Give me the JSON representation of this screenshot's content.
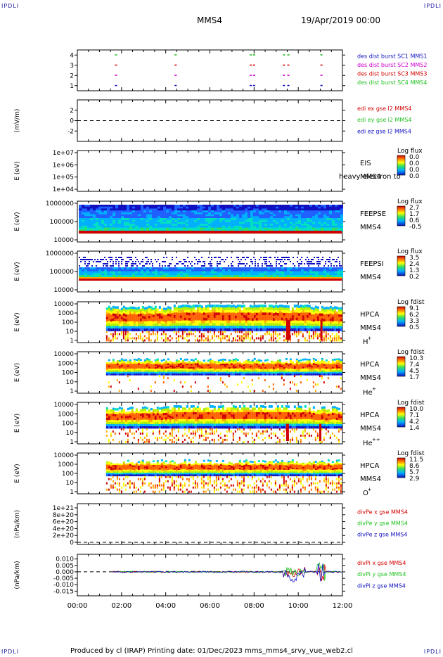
{
  "corner_marks": [
    "IPDLI",
    "IPDLI",
    "IPDLI",
    "IPDLI"
  ],
  "header": {
    "spacecraft": "MMS4",
    "date": "19/Apr/2019 00:00"
  },
  "footer": {
    "text": "Produced by cl (IRAP)   Printing date: 01/Dec/2023   mms_mms4_srvy_vue_web2.cl"
  },
  "colors": {
    "red": "#d40000",
    "green": "#22c022",
    "blue": "#1010c0",
    "magenta": "#d000d0"
  },
  "chart_data": [
    {
      "type": "scatter",
      "ylim": [
        0.5,
        4.5
      ],
      "yticks": [
        "4",
        "3",
        "2",
        "1"
      ],
      "legend": [
        {
          "label": "des dist burst SC1 MMS1",
          "color": "#1010c0"
        },
        {
          "label": "des dist burst SC2 MMS2",
          "color": "#d000d0"
        },
        {
          "label": "des dist burst SC3 MMS3",
          "color": "#d40000"
        },
        {
          "label": "des dist burst SC4 MMS4",
          "color": "#22c022"
        }
      ],
      "burst_times_h": [
        1.75,
        4.45,
        7.85,
        8.0,
        9.35,
        9.55,
        11.05
      ]
    },
    {
      "type": "line",
      "ylabel": "(mV/m)",
      "yticks": [
        "2",
        "0",
        "-2"
      ],
      "legend": [
        {
          "label": "edi ex gse l2 MMS4",
          "color": "#d40000"
        },
        {
          "label": "edi ey gse l2 MMS4",
          "color": "#22c022"
        },
        {
          "label": "edi ez gse l2 MMS4",
          "color": "#1010c0"
        }
      ]
    },
    {
      "type": "heatmap",
      "ylabel": "E (eV)",
      "yticks": [
        "1e+07",
        "1e+06",
        "1e+05",
        "1e+04"
      ],
      "instrument": [
        "EIS",
        "MMS4"
      ],
      "overlay_text": "heavy electron to",
      "colorbar": {
        "title": "Log flux",
        "ticks": [
          "0.0",
          "0.0",
          "0.0",
          "0.0"
        ]
      }
    },
    {
      "type": "heatmap",
      "ylabel": "E (eV)",
      "yticks": [
        "1000000",
        "100000",
        "10000"
      ],
      "instrument": [
        "FEEPSE",
        "MMS4"
      ],
      "colorbar": {
        "title": "Log flux",
        "ticks": [
          "2.7",
          "1.7",
          "0.6",
          "-0.5"
        ]
      }
    },
    {
      "type": "heatmap",
      "ylabel": "E (eV)",
      "yticks": [
        "1000000",
        "100000",
        "10000"
      ],
      "instrument": [
        "FEEPSI",
        "MMS4"
      ],
      "colorbar": {
        "title": "Log flux",
        "ticks": [
          "3.5",
          "2.4",
          "1.3",
          "0.2"
        ]
      }
    },
    {
      "type": "heatmap",
      "ylabel": "E (eV)",
      "yticks": [
        "10000",
        "1000",
        "100",
        "10",
        "1"
      ],
      "instrument": [
        "HPCA",
        "MMS4",
        "H",
        "+"
      ],
      "colorbar": {
        "title": "Log fdist",
        "ticks": [
          "9.1",
          "6.2",
          "3.3",
          "0.5"
        ]
      }
    },
    {
      "type": "heatmap",
      "ylabel": "E (eV)",
      "yticks": [
        "10000",
        "1000",
        "100",
        "10",
        "1"
      ],
      "instrument": [
        "HPCA",
        "MMS4",
        "He",
        "+"
      ],
      "colorbar": {
        "title": "Log fdist",
        "ticks": [
          "10.3",
          "7.4",
          "4.5",
          "1.7"
        ]
      }
    },
    {
      "type": "heatmap",
      "ylabel": "E (eV)",
      "yticks": [
        "10000",
        "1000",
        "100",
        "10",
        "1"
      ],
      "instrument": [
        "HPCA",
        "MMS4",
        "He",
        "++"
      ],
      "colorbar": {
        "title": "Log fdist",
        "ticks": [
          "10.0",
          "7.1",
          "4.2",
          "1.4"
        ]
      }
    },
    {
      "type": "heatmap",
      "ylabel": "E (eV)",
      "yticks": [
        "10000",
        "1000",
        "100",
        "10",
        "1"
      ],
      "instrument": [
        "HPCA",
        "MMS4",
        "O",
        "+"
      ],
      "colorbar": {
        "title": "Log fdist",
        "ticks": [
          "11.5",
          "8.6",
          "5.7",
          "2.9"
        ]
      }
    },
    {
      "type": "line",
      "ylabel": "(nPa/km)",
      "yticks": [
        "1e+21",
        "8e+20",
        "6e+20",
        "4e+20",
        "2e+20",
        "0"
      ],
      "legend": [
        {
          "label": "divPe x gse MMS4",
          "color": "#d40000"
        },
        {
          "label": "divPe y gse MMS4",
          "color": "#22c022"
        },
        {
          "label": "divPe z gse MMS4",
          "color": "#1010c0"
        }
      ]
    },
    {
      "type": "line",
      "ylabel": "(nPa/km)",
      "yticks": [
        "0.010",
        "0.005",
        "0.000",
        "-0.005",
        "-0.010",
        "-0.015"
      ],
      "legend": [
        {
          "label": "divPi x gse MMS4",
          "color": "#d40000"
        },
        {
          "label": "divPi y gse MMS4",
          "color": "#22c022"
        },
        {
          "label": "divPi z gse MMS4",
          "color": "#1010c0"
        }
      ]
    }
  ],
  "time_axis": {
    "xlim_h": [
      0,
      12
    ],
    "ticks": [
      "00:00",
      "02:00",
      "04:00",
      "06:00",
      "08:00",
      "10:00",
      "12:00"
    ]
  }
}
